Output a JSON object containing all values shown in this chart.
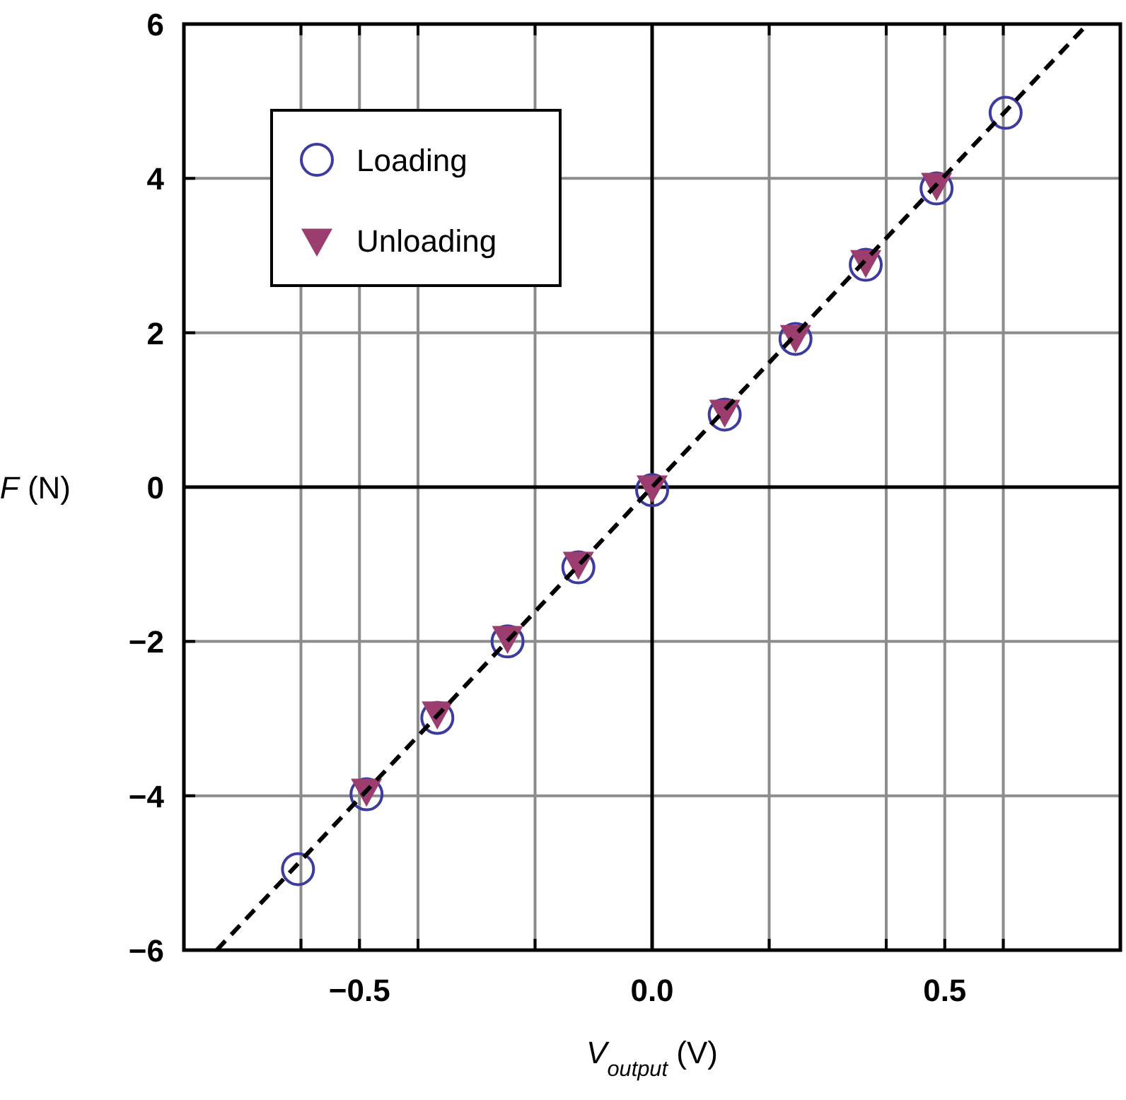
{
  "chart_data": {
    "type": "scatter",
    "xlabel": "V$_{output}$ (V)",
    "ylabel": "F (N)",
    "xlim": [
      -0.8,
      0.8
    ],
    "ylim": [
      -6,
      6
    ],
    "xticks": [
      {
        "value": -0.6,
        "label": null
      },
      {
        "value": -0.5,
        "label": "−0.5"
      },
      {
        "value": -0.4,
        "label": null
      },
      {
        "value": -0.2,
        "label": null
      },
      {
        "value": 0,
        "label": "0.0"
      },
      {
        "value": 0.2,
        "label": null
      },
      {
        "value": 0.4,
        "label": null
      },
      {
        "value": 0.5,
        "label": "0.5"
      },
      {
        "value": 0.6,
        "label": null
      }
    ],
    "yticks": [
      {
        "value": -6,
        "label": "−6"
      },
      {
        "value": -4,
        "label": "−4"
      },
      {
        "value": -2,
        "label": "−2"
      },
      {
        "value": 0,
        "label": "0"
      },
      2,
      4,
      6
    ],
    "grid": true,
    "legend": "top left",
    "series": [
      {
        "name": "Loading",
        "color": "#3c3ca0",
        "marker": "circle",
        "x": [
          -0.605,
          -0.488,
          -0.367,
          -0.247,
          -0.126,
          0,
          0.124,
          0.245,
          0.365,
          0.486,
          0.604
        ],
        "values": [
          -4.95,
          -3.98,
          -2.99,
          -2.0,
          -1.04,
          -0.04,
          0.94,
          1.92,
          2.88,
          3.87,
          4.85
        ]
      },
      {
        "name": "Unloading",
        "color": "#9b3d6e",
        "marker": "triangle",
        "x": [
          -0.488,
          -0.367,
          -0.247,
          -0.126,
          0,
          0.124,
          0.245,
          0.365,
          0.486
        ],
        "values": [
          -3.93,
          -2.93,
          -1.95,
          -0.99,
          0.0,
          0.98,
          1.95,
          2.92,
          3.92
        ]
      },
      {
        "type": "line",
        "color": "#000000",
        "line_style": "dashed",
        "marker": "none",
        "x": [
          -0.744,
          0.744
        ],
        "values": [
          -6,
          6
        ]
      }
    ]
  }
}
